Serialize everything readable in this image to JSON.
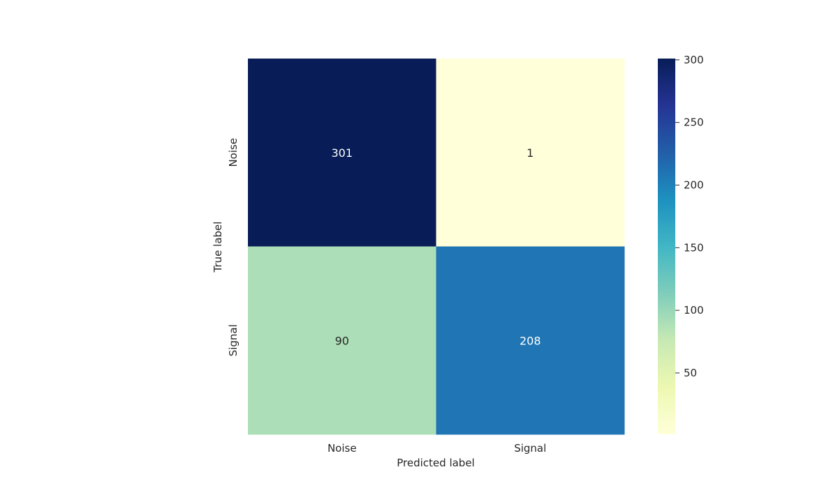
{
  "chart_data": {
    "type": "heatmap",
    "title": "",
    "xlabel": "Predicted label",
    "ylabel": "True label",
    "x_categories": [
      "Noise",
      "Signal"
    ],
    "y_categories": [
      "Noise",
      "Signal"
    ],
    "matrix": [
      [
        301,
        1
      ],
      [
        90,
        208
      ]
    ],
    "colormap": "YlGnBu",
    "colormap_stops": [
      "#ffffd9",
      "#edf8b1",
      "#c7e9b4",
      "#7fcdbb",
      "#41b6c4",
      "#1d91c0",
      "#225ea8",
      "#253494",
      "#081d58"
    ],
    "color_range": [
      1,
      301
    ],
    "colorbar_ticks": [
      50,
      100,
      150,
      200,
      250,
      300
    ],
    "annotation_colors": {
      "dark": "#262626",
      "light": "#ffffff"
    }
  }
}
